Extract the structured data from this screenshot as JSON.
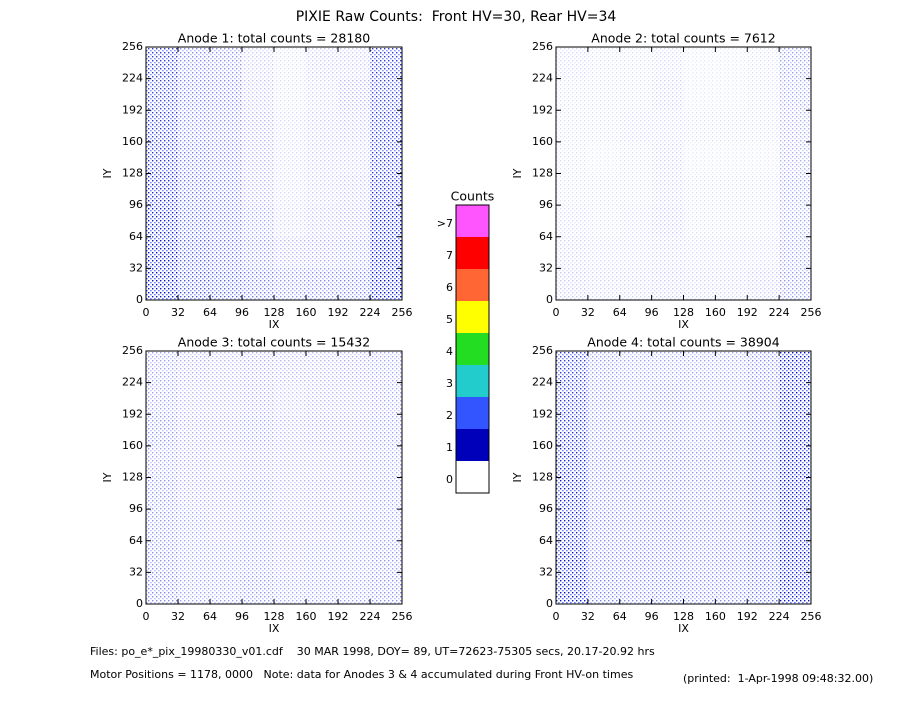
{
  "title": "PIXIE Raw Counts:  Front HV=30, Rear HV=34",
  "footer": {
    "files": "Files: po_e*_pix_19980330_v01.cdf    30 MAR 1998, DOY= 89, UT=72623-75305 secs, 20.17-20.92 hrs",
    "motor": "Motor Positions = 1178, 0000   Note: data for Anodes 3 & 4 accumulated during Front HV-on times",
    "printed": "(printed:  1-Apr-1998 09:48:32.00)"
  },
  "chart_data": [
    {
      "type": "heatmap",
      "title": "Anode 1: total counts = 28180",
      "xlabel": "IX",
      "ylabel": "IY",
      "color": "#0a14c8",
      "xlim": [
        0,
        256
      ],
      "ylim": [
        0,
        256
      ],
      "xticks": [
        0,
        32,
        64,
        96,
        128,
        160,
        192,
        224,
        256
      ],
      "yticks": [
        0,
        32,
        64,
        96,
        128,
        160,
        192,
        224,
        256
      ],
      "density": [
        [
          50,
          30,
          28,
          14,
          8,
          14,
          14,
          50
        ],
        [
          48,
          32,
          30,
          16,
          8,
          12,
          18,
          48
        ],
        [
          50,
          30,
          28,
          18,
          10,
          14,
          16,
          50
        ],
        [
          52,
          34,
          30,
          18,
          10,
          14,
          14,
          52
        ],
        [
          55,
          36,
          32,
          18,
          10,
          14,
          16,
          55
        ],
        [
          58,
          38,
          34,
          22,
          12,
          16,
          18,
          58
        ],
        [
          60,
          42,
          36,
          26,
          18,
          20,
          22,
          60
        ],
        [
          62,
          44,
          40,
          34,
          28,
          30,
          32,
          62
        ]
      ]
    },
    {
      "type": "heatmap",
      "title": "Anode 2: total counts = 7612",
      "xlabel": "IX",
      "ylabel": "IY",
      "color": "#0a14c8",
      "xlim": [
        0,
        256
      ],
      "ylim": [
        0,
        256
      ],
      "xticks": [
        0,
        32,
        64,
        96,
        128,
        160,
        192,
        224,
        256
      ],
      "yticks": [
        0,
        32,
        64,
        96,
        128,
        160,
        192,
        224,
        256
      ],
      "density": [
        [
          10,
          8,
          8,
          10,
          6,
          6,
          8,
          25
        ],
        [
          8,
          8,
          8,
          12,
          6,
          6,
          8,
          22
        ],
        [
          8,
          8,
          10,
          10,
          8,
          8,
          8,
          20
        ],
        [
          8,
          6,
          8,
          12,
          6,
          6,
          6,
          20
        ],
        [
          8,
          8,
          8,
          12,
          8,
          8,
          8,
          22
        ],
        [
          10,
          8,
          10,
          14,
          8,
          8,
          8,
          22
        ],
        [
          12,
          10,
          10,
          12,
          10,
          10,
          10,
          24
        ],
        [
          14,
          12,
          12,
          14,
          12,
          12,
          14,
          26
        ]
      ]
    },
    {
      "type": "heatmap",
      "title": "Anode 3: total counts = 15432",
      "xlabel": "IX",
      "ylabel": "IY",
      "color": "#0a14c8",
      "xlim": [
        0,
        256
      ],
      "ylim": [
        0,
        256
      ],
      "xticks": [
        0,
        32,
        64,
        96,
        128,
        160,
        192,
        224,
        256
      ],
      "yticks": [
        0,
        32,
        64,
        96,
        128,
        160,
        192,
        224,
        256
      ],
      "density": [
        [
          24,
          20,
          18,
          20,
          18,
          18,
          20,
          22
        ],
        [
          24,
          18,
          18,
          20,
          16,
          18,
          18,
          22
        ],
        [
          26,
          20,
          20,
          22,
          18,
          20,
          20,
          24
        ],
        [
          24,
          20,
          18,
          20,
          18,
          18,
          20,
          22
        ],
        [
          26,
          20,
          20,
          22,
          18,
          20,
          20,
          24
        ],
        [
          26,
          22,
          20,
          22,
          20,
          20,
          22,
          24
        ],
        [
          28,
          22,
          22,
          24,
          20,
          22,
          22,
          26
        ],
        [
          30,
          24,
          24,
          26,
          22,
          24,
          24,
          28
        ]
      ]
    },
    {
      "type": "heatmap",
      "title": "Anode 4: total counts = 38904",
      "xlabel": "IX",
      "ylabel": "IY",
      "color": "#0a14c8",
      "xlim": [
        0,
        256
      ],
      "ylim": [
        0,
        256
      ],
      "xticks": [
        0,
        32,
        64,
        96,
        128,
        160,
        192,
        224,
        256
      ],
      "yticks": [
        0,
        32,
        64,
        96,
        128,
        160,
        192,
        224,
        256
      ],
      "density": [
        [
          50,
          26,
          24,
          24,
          24,
          24,
          30,
          65
        ],
        [
          52,
          26,
          24,
          26,
          24,
          24,
          30,
          66
        ],
        [
          54,
          26,
          26,
          26,
          24,
          26,
          32,
          68
        ],
        [
          56,
          28,
          26,
          28,
          26,
          26,
          32,
          70
        ],
        [
          58,
          28,
          28,
          28,
          26,
          28,
          34,
          72
        ],
        [
          58,
          30,
          28,
          30,
          28,
          28,
          34,
          72
        ],
        [
          60,
          30,
          30,
          30,
          28,
          30,
          36,
          70
        ],
        [
          60,
          32,
          30,
          32,
          30,
          30,
          36,
          68
        ]
      ]
    },
    {
      "type": "colorbar",
      "title": "Counts",
      "categories": [
        ">7",
        "7",
        "6",
        "5",
        "4",
        "3",
        "2",
        "1",
        "0"
      ],
      "colors": [
        "#ff55ff",
        "#ff0000",
        "#ff6633",
        "#ffff00",
        "#22dd22",
        "#22cccc",
        "#3355ff",
        "#0000bb",
        "#ffffff"
      ]
    }
  ]
}
